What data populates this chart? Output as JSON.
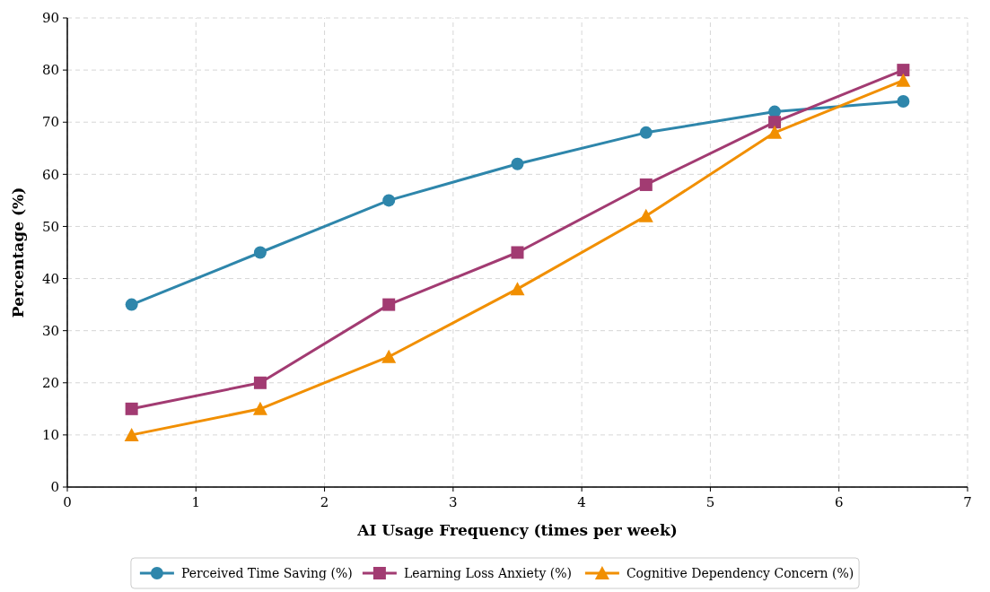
{
  "chart_data": {
    "type": "line",
    "xlabel": "AI Usage Frequency (times per week)",
    "ylabel": "Percentage (%)",
    "x": [
      0.5,
      1.5,
      2.5,
      3.5,
      4.5,
      5.5,
      6.5
    ],
    "series": [
      {
        "name": "Perceived Time Saving (%)",
        "color": "#2e86ab",
        "marker": "circle",
        "values": [
          35,
          45,
          55,
          62,
          68,
          72,
          74
        ]
      },
      {
        "name": "Learning Loss Anxiety (%)",
        "color": "#a23b72",
        "marker": "square",
        "values": [
          15,
          20,
          35,
          45,
          58,
          70,
          80
        ]
      },
      {
        "name": "Cognitive Dependency Concern (%)",
        "color": "#f18f01",
        "marker": "triangle",
        "values": [
          10,
          15,
          25,
          38,
          52,
          68,
          78
        ]
      }
    ],
    "xlim": [
      0,
      7
    ],
    "xticks": [
      0,
      1,
      2,
      3,
      4,
      5,
      6,
      7
    ],
    "ylim": [
      0,
      90
    ],
    "yticks": [
      0,
      10,
      20,
      30,
      40,
      50,
      60,
      70,
      80,
      90
    ],
    "grid": true,
    "legend": "bottom",
    "line_style": "solid"
  }
}
